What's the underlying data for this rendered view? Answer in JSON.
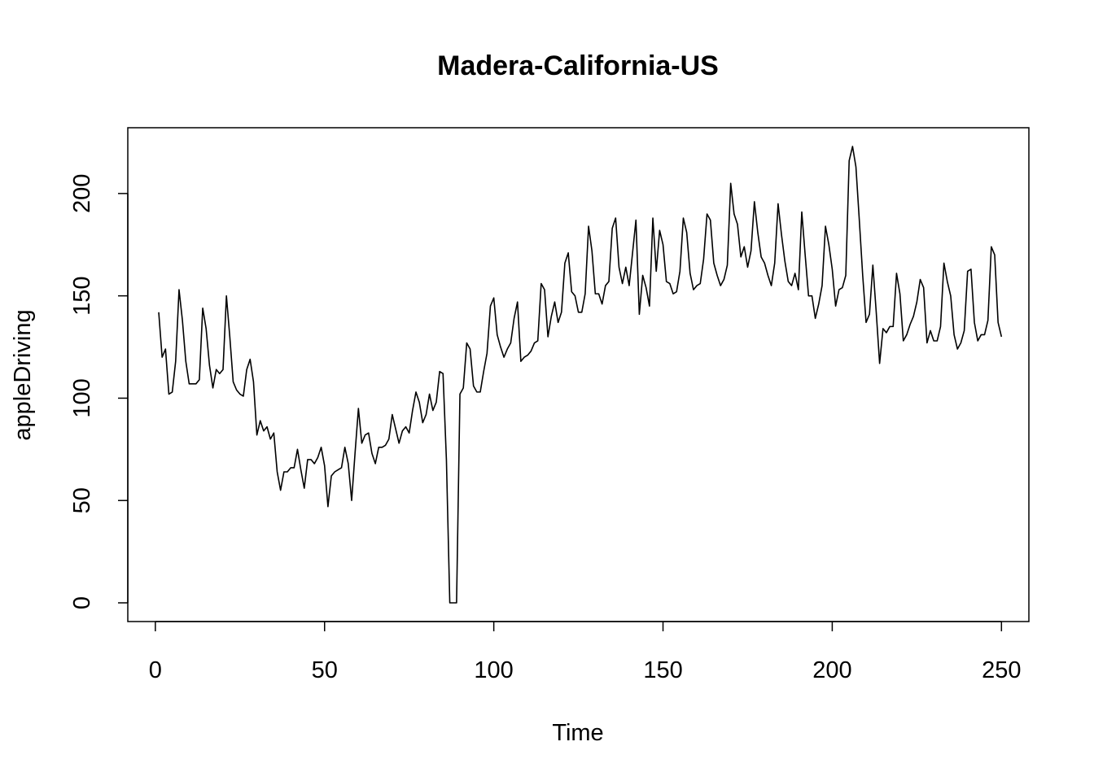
{
  "chart_data": {
    "type": "line",
    "title": "Madera-California-US",
    "xlabel": "Time",
    "ylabel": "appleDriving",
    "xlim": [
      1,
      248
    ],
    "ylim": [
      0,
      223
    ],
    "x_ticks": [
      0,
      50,
      100,
      150,
      200,
      250
    ],
    "y_ticks": [
      0,
      50,
      100,
      150,
      200
    ],
    "grid": false,
    "legend": "none",
    "line_color": "#000000",
    "series": [
      {
        "x_start": 1,
        "x_step": 1,
        "values": [
          142,
          120,
          124,
          102,
          103,
          118,
          153,
          138,
          118,
          107,
          107,
          107,
          109,
          144,
          134,
          116,
          105,
          114,
          112,
          114,
          150,
          130,
          108,
          104,
          102,
          101,
          114,
          119,
          108,
          82,
          89,
          84,
          86,
          80,
          83,
          64,
          55,
          64,
          64,
          66,
          66,
          75,
          65,
          56,
          70,
          70,
          68,
          71,
          76,
          67,
          47,
          62,
          64,
          65,
          66,
          76,
          68,
          50,
          73,
          95,
          78,
          82,
          83,
          73,
          68,
          76,
          76,
          77,
          80,
          92,
          85,
          78,
          84,
          86,
          83,
          94,
          103,
          98,
          88,
          92,
          102,
          94,
          98,
          113,
          112,
          70,
          0,
          0,
          0,
          102,
          105,
          127,
          124,
          106,
          103,
          103,
          113,
          122,
          145,
          149,
          131,
          125,
          120,
          124,
          127,
          139,
          147,
          118,
          120,
          121,
          123,
          127,
          128,
          156,
          153,
          130,
          140,
          147,
          137,
          142,
          166,
          171,
          152,
          150,
          142,
          142,
          151,
          184,
          172,
          151,
          151,
          146,
          155,
          157,
          183,
          188,
          164,
          156,
          164,
          155,
          171,
          187,
          141,
          160,
          154,
          145,
          188,
          162,
          182,
          175,
          157,
          156,
          151,
          152,
          162,
          188,
          181,
          161,
          153,
          155,
          156,
          168,
          190,
          187,
          166,
          160,
          155,
          158,
          165,
          205,
          190,
          185,
          169,
          174,
          164,
          172,
          196,
          181,
          169,
          166,
          160,
          155,
          166,
          195,
          180,
          167,
          157,
          155,
          161,
          153,
          191,
          170,
          150,
          150,
          139,
          146,
          155,
          184,
          175,
          163,
          145,
          153,
          154,
          160,
          216,
          223,
          213,
          187,
          160,
          137,
          141,
          165,
          142,
          117,
          134,
          132,
          135,
          135,
          161,
          151,
          128,
          131,
          136,
          140,
          147,
          158,
          154,
          127,
          133,
          128,
          128,
          135,
          166,
          157,
          150,
          131,
          124,
          127,
          133,
          162,
          163,
          137,
          128,
          131,
          131,
          138,
          174,
          170,
          137,
          130
        ]
      }
    ]
  }
}
